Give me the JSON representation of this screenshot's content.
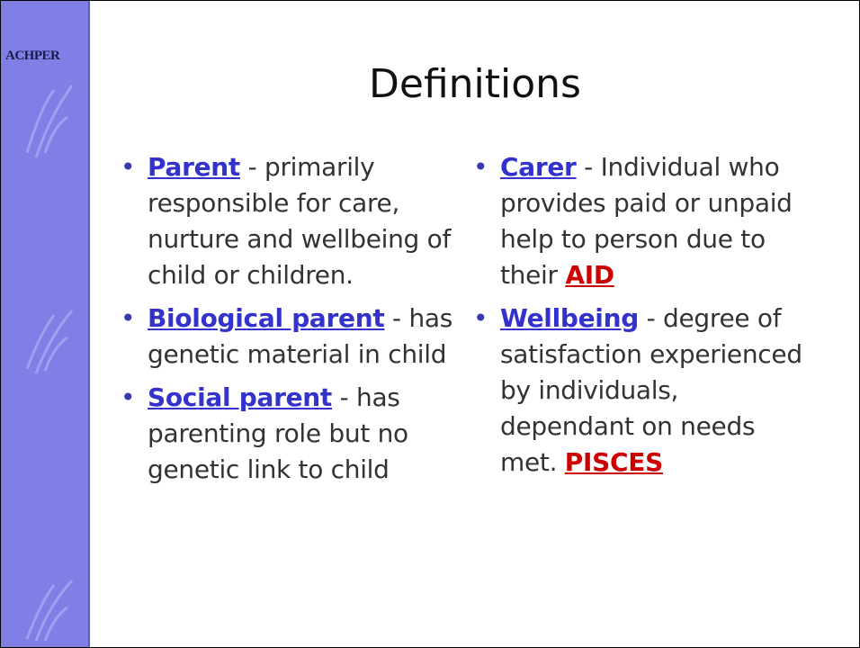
{
  "logo": "ACHPER",
  "title": "Definitions",
  "columns": [
    {
      "items": [
        {
          "term": "Parent",
          "description": " - primarily responsible for care, nurture and wellbeing of child or children."
        },
        {
          "term": "Biological parent",
          "description": " - has genetic material in child"
        },
        {
          "term": "Social parent",
          "description": " - has parenting role but no genetic link to child"
        }
      ]
    },
    {
      "items": [
        {
          "term": "Carer",
          "description": " - Individual who provides paid or unpaid help to person due to their ",
          "link": "AID"
        },
        {
          "term": "Wellbeing",
          "description": " - degree of satisfaction experienced by individuals, dependant on needs met. ",
          "link": "PISCES"
        }
      ]
    }
  ]
}
